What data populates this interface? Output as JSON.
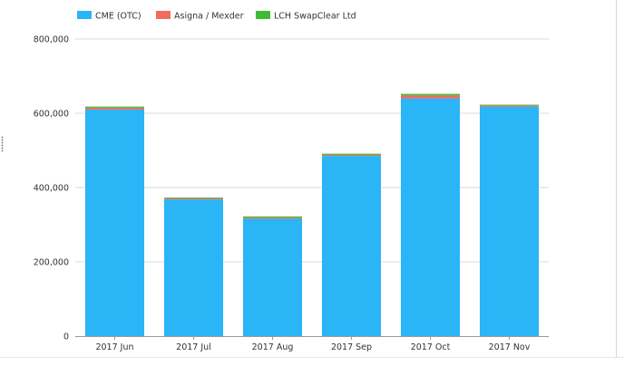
{
  "chart_data": {
    "type": "bar",
    "stacked": true,
    "categories": [
      "2017 Jun",
      "2017 Jul",
      "2017 Aug",
      "2017 Sep",
      "2017 Oct",
      "2017 Nov"
    ],
    "series": [
      {
        "name": "CME (OTC)",
        "color": "#29b5f6",
        "values": [
          610000,
          368000,
          316000,
          485000,
          640000,
          618000
        ]
      },
      {
        "name": "Asigna / Mexder",
        "color": "#f26b5e",
        "values": [
          5000,
          3000,
          3000,
          3000,
          8000,
          3000
        ]
      },
      {
        "name": "LCH SwapClear Ltd",
        "color": "#3dba36",
        "values": [
          3000,
          2000,
          3000,
          3000,
          4000,
          2000
        ]
      }
    ],
    "ylim": [
      0,
      800000
    ],
    "yticks": [
      0,
      200000,
      400000,
      600000,
      800000
    ],
    "ytick_labels": [
      "0",
      "200,000",
      "400,000",
      "600,000",
      "800,000"
    ],
    "grid": true,
    "legend_position": "top-left"
  }
}
